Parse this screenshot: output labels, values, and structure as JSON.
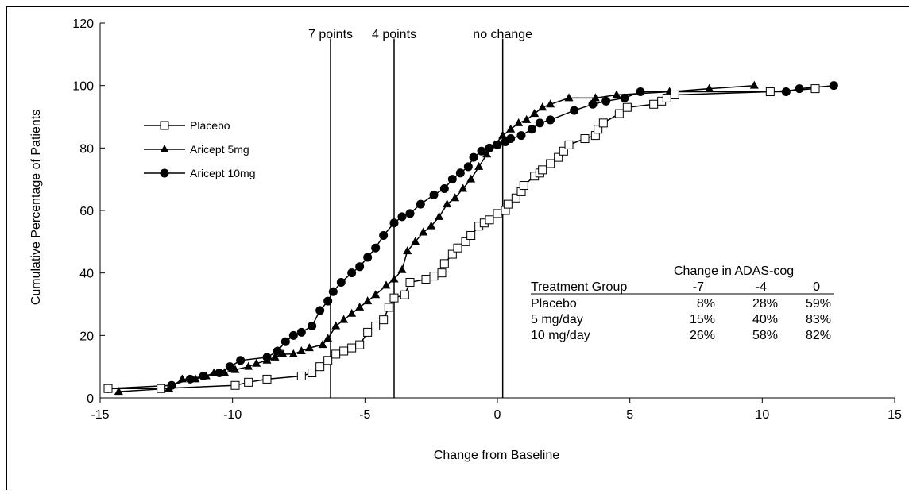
{
  "chart_data": {
    "type": "line",
    "xlabel": "Change from Baseline",
    "ylabel": "Cumulative Percentage of Patients",
    "xlim": [
      -15,
      15
    ],
    "ylim": [
      0,
      120
    ],
    "xticks": [
      -15,
      -10,
      -5,
      0,
      5,
      10,
      15
    ],
    "yticks": [
      0,
      20,
      40,
      60,
      80,
      100,
      120
    ],
    "xtick_labels": [
      "-15",
      "-10",
      "-5",
      "0",
      "5",
      "10",
      "15"
    ],
    "ytick_labels": [
      "0",
      "20",
      "40",
      "60",
      "80",
      "100",
      "120"
    ],
    "grid": false,
    "legend_position": "top-left",
    "series": [
      {
        "name": "Placebo",
        "marker": "square-open",
        "x": [
          -14.7,
          -12.7,
          -9.9,
          -9.4,
          -8.7,
          -7.4,
          -7.0,
          -6.7,
          -6.4,
          -6.1,
          -5.8,
          -5.5,
          -5.2,
          -4.9,
          -4.6,
          -4.3,
          -4.1,
          -3.9,
          -3.5,
          -3.3,
          -2.7,
          -2.4,
          -2.1,
          -2.0,
          -1.7,
          -1.5,
          -1.2,
          -1.0,
          -0.7,
          -0.5,
          -0.3,
          0.0,
          0.3,
          0.4,
          0.7,
          0.9,
          1.0,
          1.4,
          1.6,
          1.7,
          2.0,
          2.3,
          2.5,
          2.7,
          3.3,
          3.7,
          3.8,
          4.0,
          4.6,
          4.9,
          5.9,
          6.2,
          6.4,
          6.7,
          10.3,
          12.0
        ],
        "y": [
          3,
          3,
          4,
          5,
          6,
          7,
          8,
          10,
          12,
          14,
          15,
          16,
          17,
          21,
          23,
          25,
          29,
          32,
          33,
          37,
          38,
          39,
          40,
          43,
          46,
          48,
          50,
          52,
          55,
          56,
          57,
          59,
          60,
          62,
          64,
          66,
          68,
          71,
          72,
          73,
          75,
          77,
          79,
          81,
          83,
          84,
          86,
          88,
          91,
          93,
          94,
          95,
          96,
          97,
          98,
          99
        ]
      },
      {
        "name": "Aricept 5mg",
        "marker": "triangle-filled",
        "x": [
          -14.3,
          -12.4,
          -11.9,
          -11.4,
          -11.0,
          -10.7,
          -10.3,
          -9.9,
          -9.4,
          -9.1,
          -8.7,
          -8.4,
          -8.1,
          -7.7,
          -7.4,
          -7.1,
          -6.6,
          -6.4,
          -6.1,
          -5.8,
          -5.5,
          -5.2,
          -4.9,
          -4.6,
          -4.2,
          -3.9,
          -3.6,
          -3.4,
          -3.1,
          -2.8,
          -2.5,
          -2.2,
          -1.9,
          -1.6,
          -1.3,
          -1.0,
          -0.7,
          -0.4,
          -0.1,
          0.2,
          0.5,
          0.8,
          1.1,
          1.4,
          1.7,
          2.0,
          2.7,
          3.7,
          4.5,
          6.5,
          8.0,
          9.7
        ],
        "y": [
          2,
          3,
          6,
          6,
          7,
          8,
          8,
          9,
          10,
          11,
          12,
          13,
          14,
          14,
          15,
          16,
          17,
          19,
          23,
          25,
          27,
          29,
          31,
          33,
          36,
          38,
          41,
          47,
          50,
          53,
          55,
          58,
          62,
          64,
          67,
          70,
          74,
          78,
          81,
          84,
          86,
          88,
          89,
          91,
          93,
          94,
          96,
          96,
          97,
          98,
          99,
          100
        ]
      },
      {
        "name": "Aricept 10mg",
        "marker": "circle-filled",
        "x": [
          -14.7,
          -12.3,
          -11.6,
          -11.1,
          -10.5,
          -10.1,
          -9.7,
          -8.7,
          -8.3,
          -8.0,
          -7.7,
          -7.4,
          -7.0,
          -6.7,
          -6.4,
          -6.2,
          -5.9,
          -5.5,
          -5.2,
          -4.9,
          -4.6,
          -4.3,
          -3.9,
          -3.6,
          -3.3,
          -2.9,
          -2.4,
          -2.0,
          -1.7,
          -1.4,
          -1.1,
          -0.9,
          -0.6,
          -0.3,
          0.0,
          0.3,
          0.5,
          0.9,
          1.3,
          1.6,
          2.0,
          2.9,
          3.6,
          4.1,
          4.8,
          5.4,
          10.9,
          11.4,
          12.7
        ],
        "y": [
          3,
          4,
          6,
          7,
          8,
          10,
          12,
          13,
          15,
          18,
          20,
          21,
          23,
          28,
          31,
          34,
          37,
          40,
          42,
          45,
          48,
          52,
          56,
          58,
          59,
          62,
          65,
          67,
          70,
          72,
          74,
          77,
          79,
          80,
          81,
          82,
          83,
          84,
          86,
          88,
          89,
          92,
          94,
          95,
          96,
          98,
          98,
          99,
          100
        ]
      }
    ],
    "reference_lines": [
      {
        "x": -6.3,
        "label": "7 points"
      },
      {
        "x": -3.9,
        "label": "4 points"
      },
      {
        "x": 0.2,
        "label": "no change"
      }
    ],
    "annotation_table": {
      "title": "Change in ADAS-cog",
      "columns": [
        "Treatment Group",
        "-7",
        "-4",
        "0"
      ],
      "rows": [
        [
          "Placebo",
          "8%",
          "28%",
          "59%"
        ],
        [
          "5 mg/day",
          "15%",
          "40%",
          "83%"
        ],
        [
          "10 mg/day",
          "26%",
          "58%",
          "82%"
        ]
      ]
    }
  }
}
